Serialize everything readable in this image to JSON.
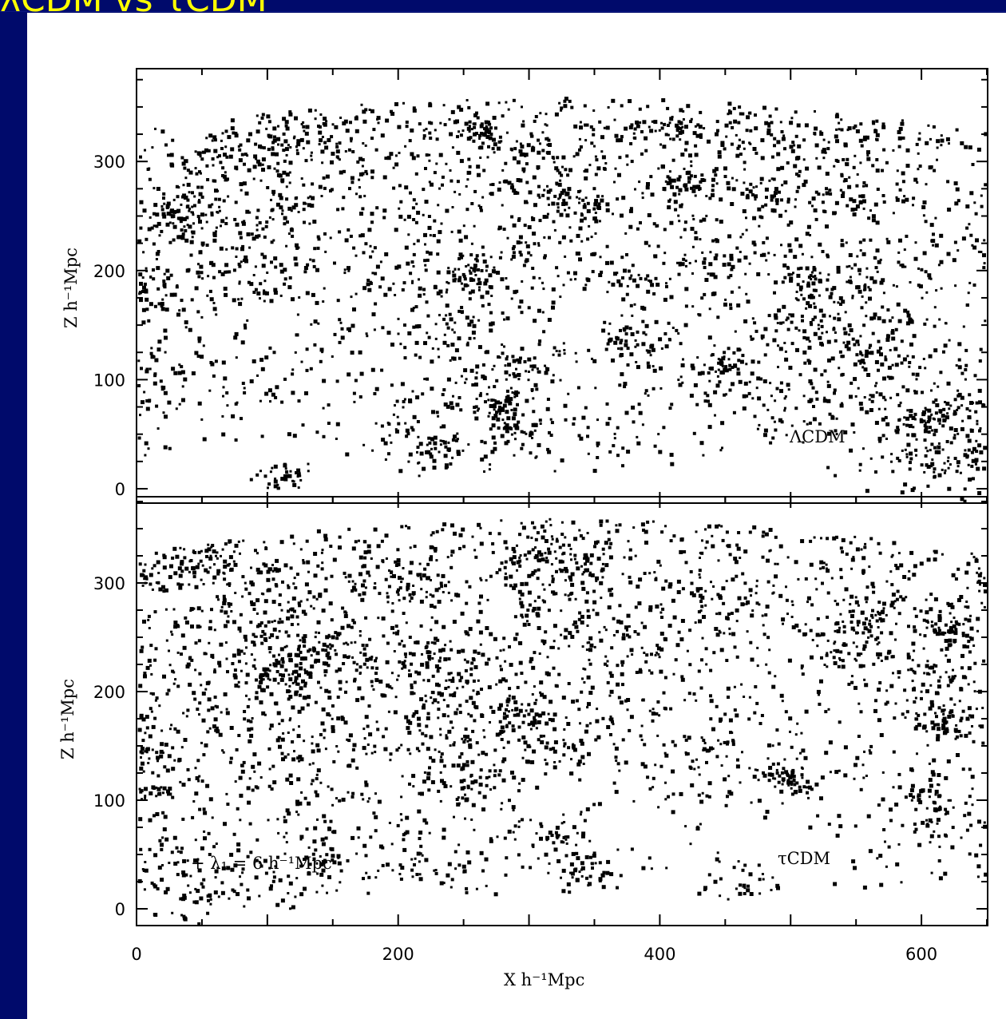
{
  "slide": {
    "title": "λCDM vs τCDM",
    "title_color": "#ffff00",
    "background_color": "#000a6b"
  },
  "chart_data": [
    {
      "type": "scatter",
      "panel": "top",
      "label": "ΛCDM",
      "xlabel": "",
      "ylabel": "Z h⁻¹Mpc",
      "xlim": [
        0,
        650
      ],
      "ylim": [
        -8,
        392
      ],
      "xticks": [],
      "yticks": [
        "0",
        "100",
        "200",
        "300"
      ],
      "yticks_values": [
        0,
        100,
        200,
        300
      ],
      "distribution": "galaxy wedge slice, fan opening upward",
      "wedge": {
        "apex": [
          320,
          -1300
        ],
        "r_min": 1320,
        "r_max": 1660,
        "half_angle_deg": 14.2
      },
      "points_approx": 12000
    },
    {
      "type": "scatter",
      "panel": "bottom",
      "label": "τCDM",
      "annotation": "+ λ₁ = 6 h⁻¹Mpc",
      "xlabel": "X h⁻¹Mpc",
      "ylabel": "Z h⁻¹Mpc",
      "xlim": [
        0,
        650
      ],
      "ylim": [
        -8,
        382
      ],
      "xticks": [
        "0",
        "200",
        "400",
        "600"
      ],
      "xticks_values": [
        0,
        200,
        400,
        600
      ],
      "yticks": [
        "0",
        "100",
        "200",
        "300"
      ],
      "yticks_values": [
        0,
        100,
        200,
        300
      ],
      "distribution": "galaxy wedge slice, fan opening upward",
      "wedge": {
        "apex": [
          320,
          -1300
        ],
        "r_min": 1320,
        "r_max": 1660,
        "half_angle_deg": 14.2
      },
      "points_approx": 12000
    }
  ]
}
